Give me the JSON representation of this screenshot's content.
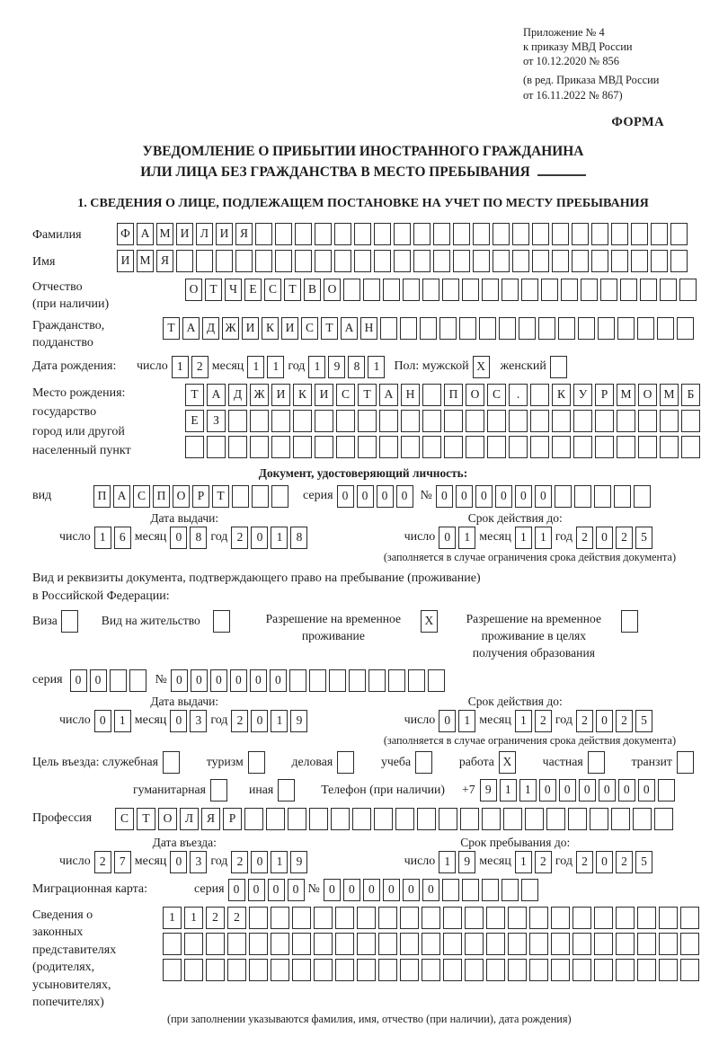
{
  "header": {
    "lines": [
      "Приложение № 4",
      "к приказу МВД России",
      "от 10.12.2020 № 856",
      "(в ред. Приказа МВД России",
      "от 16.11.2022 № 867)"
    ],
    "form_label": "ФОРМА"
  },
  "title": {
    "line1": "УВЕДОМЛЕНИЕ О ПРИБЫТИИ ИНОСТРАННОГО ГРАЖДАНИНА",
    "line2": "ИЛИ ЛИЦА БЕЗ ГРАЖДАНСТВА В МЕСТО ПРЕБЫВАНИЯ"
  },
  "section1": {
    "heading": "1. СВЕДЕНИЯ О ЛИЦЕ, ПОДЛЕЖАЩЕМ ПОСТАНОВКЕ НА УЧЕТ ПО МЕСТУ ПРЕБЫВАНИЯ"
  },
  "fields": {
    "surname": {
      "label": "Фамилия",
      "chars": "ФАМИЛИЯ",
      "count": 29
    },
    "name": {
      "label": "Имя",
      "chars": "ИМЯ",
      "count": 29
    },
    "patronymic": {
      "label1": "Отчество",
      "label2": "(при наличии)",
      "chars": "ОТЧЕСТВО",
      "count": 26
    },
    "citizenship": {
      "label1": "Гражданство,",
      "label2": "подданство",
      "chars": "ТАДЖИКИСТАН",
      "count": 27
    },
    "birth_date": {
      "label": "Дата рождения:",
      "d_label": "число",
      "d": {
        "chars": "12",
        "count": 2
      },
      "m_label": "месяц",
      "m": {
        "chars": "11",
        "count": 2
      },
      "y_label": "год",
      "y": {
        "chars": "1981",
        "count": 4
      }
    },
    "gender": {
      "label": "Пол: мужской",
      "male": {
        "chars": "X",
        "count": 1
      },
      "female_label": "женский",
      "female": {
        "chars": "",
        "count": 1
      }
    },
    "birthplace": {
      "label_lines": [
        "Место рождения:",
        "государство",
        "город или другой",
        "населенный пункт"
      ],
      "rows": [
        {
          "chars": "ТАДЖИКИСТАН ПОС. КУРМОМБ",
          "count": 24
        },
        {
          "chars": "ЕЗ",
          "count": 24
        },
        {
          "chars": "",
          "count": 24
        }
      ]
    },
    "identity_doc": {
      "heading": "Документ, удостоверяющий личность:",
      "type_label": "вид",
      "type": {
        "chars": "ПАСПОРТ",
        "count": 10
      },
      "series_label": "серия",
      "series": {
        "chars": "0000",
        "count": 4
      },
      "no_label": "№",
      "number": {
        "chars": "000000",
        "count": 11
      }
    },
    "doc_issue": {
      "heading": "Дата выдачи:",
      "d_label": "число",
      "d": {
        "chars": "16",
        "count": 2
      },
      "m_label": "месяц",
      "m": {
        "chars": "08",
        "count": 2
      },
      "y_label": "год",
      "y": {
        "chars": "2018",
        "count": 4
      }
    },
    "doc_valid": {
      "heading": "Срок действия до:",
      "d_label": "число",
      "d": {
        "chars": "01",
        "count": 2
      },
      "m_label": "месяц",
      "m": {
        "chars": "11",
        "count": 2
      },
      "y_label": "год",
      "y": {
        "chars": "2025",
        "count": 4
      },
      "note": "(заполняется в случае ограничения срока действия документа)"
    },
    "residence": {
      "intro1": "Вид и реквизиты документа, подтверждающего право на пребывание (проживание)",
      "intro2": "в Российской Федерации:",
      "visa_label": "Виза",
      "visa": {
        "chars": "",
        "count": 1
      },
      "permit_label": "Вид на жительство",
      "permit": {
        "chars": "",
        "count": 1
      },
      "temp_line1": "Разрешение на временное",
      "temp_line2": "проживание",
      "temp": {
        "chars": "X",
        "count": 1
      },
      "temp_edu_line1": "Разрешение на временное",
      "temp_edu_line2": "проживание в целях",
      "temp_edu_line3": "получения образования",
      "temp_edu": {
        "chars": "",
        "count": 1
      }
    },
    "resid_series": {
      "series_label": "серия",
      "series": {
        "chars": "00",
        "count": 4
      },
      "no_label": "№",
      "number": {
        "chars": "000000",
        "count": 14
      }
    },
    "resid_issue": {
      "heading": "Дата выдачи:",
      "d_label": "число",
      "d": {
        "chars": "01",
        "count": 2
      },
      "m_label": "месяц",
      "m": {
        "chars": "03",
        "count": 2
      },
      "y_label": "год",
      "y": {
        "chars": "2019",
        "count": 4
      }
    },
    "resid_valid": {
      "heading": "Срок действия до:",
      "d_label": "число",
      "d": {
        "chars": "01",
        "count": 2
      },
      "m_label": "месяц",
      "m": {
        "chars": "12",
        "count": 2
      },
      "y_label": "год",
      "y": {
        "chars": "2025",
        "count": 4
      },
      "note": "(заполняется в случае ограничения срока действия документа)"
    },
    "purpose": {
      "label": "Цель въезда: служебная",
      "options": [
        {
          "label": "служебная",
          "box": {
            "chars": "",
            "count": 1
          }
        },
        {
          "label": "туризм",
          "box": {
            "chars": "",
            "count": 1
          }
        },
        {
          "label": "деловая",
          "box": {
            "chars": "",
            "count": 1
          }
        },
        {
          "label": "учеба",
          "box": {
            "chars": "",
            "count": 1
          }
        },
        {
          "label": "работа",
          "box": {
            "chars": "X",
            "count": 1
          }
        },
        {
          "label": "частная",
          "box": {
            "chars": "",
            "count": 1
          }
        },
        {
          "label": "транзит",
          "box": {
            "chars": "",
            "count": 1
          }
        },
        {
          "label": "гуманитарная",
          "box": {
            "chars": "",
            "count": 1
          }
        },
        {
          "label": "иная",
          "box": {
            "chars": "",
            "count": 1
          }
        }
      ]
    },
    "phone": {
      "label": "Телефон (при наличии)",
      "prefix": "+7",
      "digits": {
        "chars": "911000000",
        "count": 10
      }
    },
    "profession": {
      "label": "Профессия",
      "chars": "СТОЛЯР",
      "count": 26
    },
    "entry_date": {
      "heading": "Дата въезда:",
      "d_label": "число",
      "d": {
        "chars": "27",
        "count": 2
      },
      "m_label": "месяц",
      "m": {
        "chars": "03",
        "count": 2
      },
      "y_label": "год",
      "y": {
        "chars": "2019",
        "count": 4
      }
    },
    "stay_until": {
      "heading": "Срок пребывания до:",
      "d_label": "число",
      "d": {
        "chars": "19",
        "count": 2
      },
      "m_label": "месяц",
      "m": {
        "chars": "12",
        "count": 2
      },
      "y_label": "год",
      "y": {
        "chars": "2025",
        "count": 4
      }
    },
    "migration_card": {
      "label": "Миграционная карта:",
      "series_label": "серия",
      "series": {
        "chars": "0000",
        "count": 4
      },
      "no_label": "№",
      "number": {
        "chars": "000000",
        "count": 11
      }
    },
    "guardians": {
      "label_lines": [
        "Сведения о",
        "законных",
        "представителях",
        "(родителях,",
        "усыновителях,",
        "попечителях)"
      ],
      "rows": [
        {
          "chars": "1122",
          "count": 25
        },
        {
          "chars": "",
          "count": 25
        },
        {
          "chars": "",
          "count": 25
        }
      ],
      "note": "(при заполнении указываются фамилия, имя, отчество (при наличии), дата рождения)"
    }
  }
}
